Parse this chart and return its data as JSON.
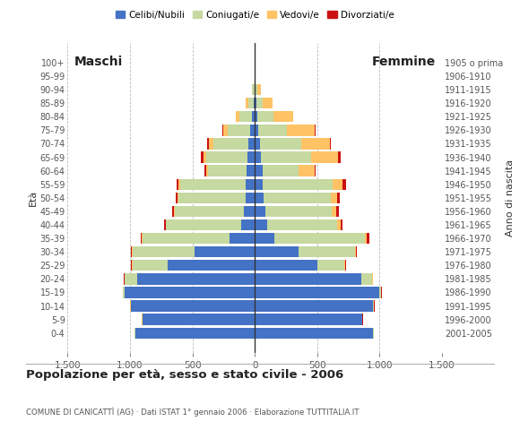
{
  "age_groups": [
    "0-4",
    "5-9",
    "10-14",
    "15-19",
    "20-24",
    "25-29",
    "30-34",
    "35-39",
    "40-44",
    "45-49",
    "50-54",
    "55-59",
    "60-64",
    "65-69",
    "70-74",
    "75-79",
    "80-84",
    "85-89",
    "90-94",
    "95-99",
    "100+"
  ],
  "birth_years": [
    "2001-2005",
    "1996-2000",
    "1991-1995",
    "1986-1990",
    "1981-1985",
    "1976-1980",
    "1971-1975",
    "1966-1970",
    "1961-1965",
    "1956-1960",
    "1951-1955",
    "1946-1950",
    "1941-1945",
    "1936-1940",
    "1931-1935",
    "1926-1930",
    "1921-1925",
    "1916-1920",
    "1911-1915",
    "1906-1910",
    "1905 o prima"
  ],
  "male": {
    "celibi": [
      960,
      900,
      990,
      1040,
      940,
      700,
      480,
      200,
      110,
      90,
      75,
      70,
      65,
      60,
      55,
      35,
      20,
      10,
      5,
      0,
      0
    ],
    "coniugati": [
      2,
      2,
      5,
      15,
      100,
      280,
      500,
      700,
      600,
      550,
      540,
      530,
      310,
      330,
      280,
      180,
      100,
      40,
      15,
      2,
      0
    ],
    "vedovi": [
      2,
      2,
      2,
      2,
      5,
      5,
      5,
      5,
      5,
      5,
      5,
      10,
      15,
      20,
      30,
      40,
      30,
      20,
      5,
      1,
      0
    ],
    "divorziati": [
      2,
      2,
      2,
      2,
      2,
      5,
      10,
      10,
      15,
      15,
      15,
      20,
      15,
      20,
      15,
      5,
      0,
      0,
      0,
      0,
      0
    ]
  },
  "female": {
    "nubili": [
      950,
      860,
      950,
      1000,
      850,
      500,
      350,
      160,
      100,
      85,
      70,
      65,
      60,
      50,
      40,
      30,
      20,
      10,
      5,
      0,
      0
    ],
    "coniugate": [
      2,
      2,
      5,
      12,
      90,
      220,
      450,
      720,
      560,
      530,
      540,
      560,
      290,
      400,
      330,
      230,
      130,
      50,
      15,
      2,
      0
    ],
    "vedove": [
      2,
      2,
      2,
      2,
      5,
      5,
      10,
      20,
      30,
      40,
      50,
      80,
      130,
      220,
      230,
      220,
      160,
      80,
      30,
      5,
      0
    ],
    "divorziate": [
      2,
      2,
      2,
      2,
      2,
      5,
      10,
      15,
      15,
      20,
      20,
      25,
      10,
      15,
      10,
      5,
      0,
      0,
      0,
      0,
      0
    ]
  },
  "colors": {
    "celibi": "#4472c4",
    "coniugati": "#c5d9a0",
    "vedovi": "#ffc265",
    "divorziati": "#cc1111"
  },
  "xlim": 1500,
  "title": "Popolazione per età, sesso e stato civile - 2006",
  "subtitle": "COMUNE DI CANICATTÌ (AG) · Dati ISTAT 1° gennaio 2006 · Elaborazione TUTTITALIA.IT",
  "legend_labels": [
    "Celibi/Nubili",
    "Coniugati/e",
    "Vedovi/e",
    "Divorziati/e"
  ],
  "ylabel_left": "Età",
  "ylabel_right": "Anno di nascita",
  "label_maschi": "Maschi",
  "label_femmine": "Femmine",
  "bg_color": "#ffffff",
  "grid_color": "#bbbbbb",
  "xtick_labels": [
    "1.500",
    "1.000",
    "500",
    "0",
    "500",
    "1.000",
    "1.500"
  ]
}
